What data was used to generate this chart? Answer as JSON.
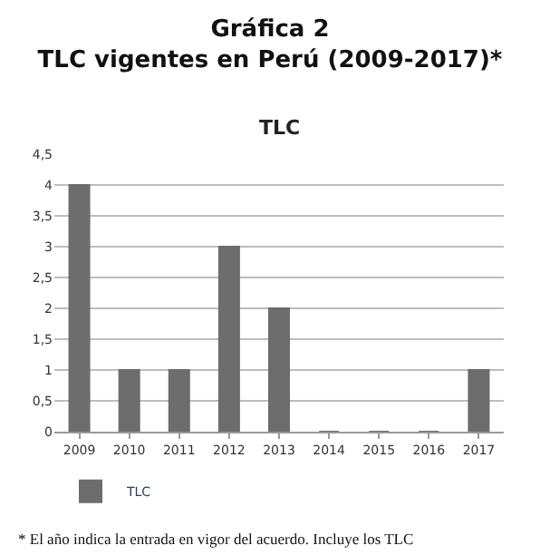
{
  "chart_data": {
    "type": "bar",
    "title": "Gráfica 2\nTLC vigentes en Perú (2009-2017)*",
    "subtitle": "TLC",
    "categories": [
      "2009",
      "2010",
      "2011",
      "2012",
      "2013",
      "2014",
      "2015",
      "2016",
      "2017"
    ],
    "series": [
      {
        "name": "TLC",
        "color": "#6d6d6d",
        "values": [
          4,
          1,
          1,
          3,
          2,
          0,
          0,
          0,
          1
        ]
      }
    ],
    "ylim": [
      0,
      4.5
    ],
    "yticks": [
      0,
      {
        "value": 0.5,
        "label": "0,5"
      },
      1,
      {
        "value": 1.5,
        "label": "1,5"
      },
      2,
      {
        "value": 2.5,
        "label": "2,5"
      },
      3,
      {
        "value": 3.5,
        "label": "3,5"
      },
      4,
      {
        "value": 4.5,
        "label": "4,5"
      }
    ],
    "grid": "y",
    "legend": "bottom left",
    "annotations": [
      "* El año indica la entrada en vigor del acuerdo. Incluye los TLC"
    ]
  }
}
